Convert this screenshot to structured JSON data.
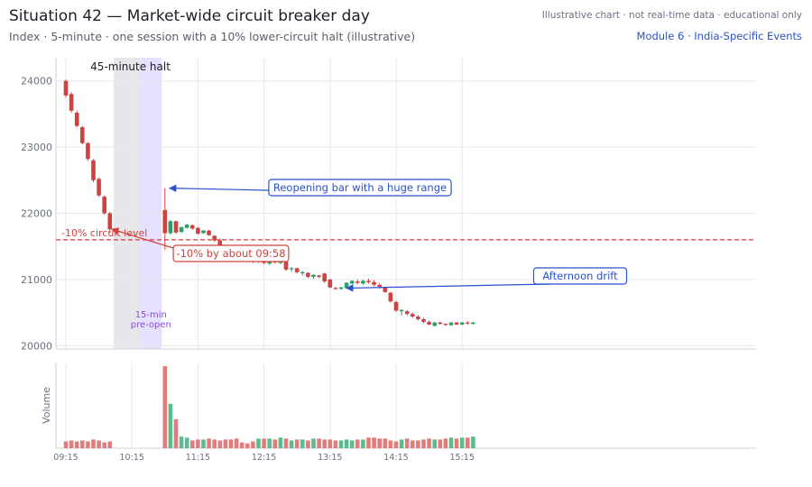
{
  "header": {
    "title": "Situation 42 — Market-wide circuit breaker day",
    "subtitle": "Index · 5-minute · one session with a 10% lower-circuit halt (illustrative)",
    "disclaimer": "Illustrative chart · not real-time data · educational only",
    "module": "Module 6 · India-Specific Events"
  },
  "colors": {
    "up": "#2e9e6b",
    "down": "#d0413f",
    "vol_up": "#5cbb8f",
    "vol_down": "#e27c7a",
    "halt_band": "#e6e7eb",
    "preopen_band": "#e5e1ff",
    "annotation_blue": "#2a52c9",
    "circuit_red": "#d0413f",
    "preopen_text": "#8a4fd8"
  },
  "chart_data": {
    "type": "candlestick",
    "ylabel_volume": "Volume",
    "price_yticks": [
      20000,
      21000,
      22000,
      23000,
      24000
    ],
    "price_ylim": [
      19950,
      24350
    ],
    "x_ticks": [
      "09:15",
      "10:15",
      "11:15",
      "12:15",
      "13:15",
      "14:15",
      "15:15"
    ],
    "circuit_level": 21600,
    "halt_label": "45-minute halt",
    "preopen_label": [
      "15-min",
      "pre-open"
    ],
    "annotations": {
      "circuit": "-10% circuit level",
      "by_time": "-10% by about 09:58",
      "reopen": "Reopening bar with a huge range",
      "drift": "Afternoon drift"
    },
    "pre_halt_bars": [
      {
        "t": "09:15",
        "o": 24000,
        "h": 24020,
        "l": 23750,
        "c": 23780,
        "v": 7
      },
      {
        "t": "09:20",
        "o": 23800,
        "h": 23830,
        "l": 23520,
        "c": 23550,
        "v": 8
      },
      {
        "t": "09:25",
        "o": 23520,
        "h": 23550,
        "l": 23300,
        "c": 23320,
        "v": 7
      },
      {
        "t": "09:30",
        "o": 23300,
        "h": 23320,
        "l": 23040,
        "c": 23060,
        "v": 8
      },
      {
        "t": "09:35",
        "o": 23060,
        "h": 23080,
        "l": 22790,
        "c": 22820,
        "v": 7
      },
      {
        "t": "09:40",
        "o": 22800,
        "h": 22820,
        "l": 22470,
        "c": 22500,
        "v": 9
      },
      {
        "t": "09:45",
        "o": 22520,
        "h": 22540,
        "l": 22250,
        "c": 22270,
        "v": 8
      },
      {
        "t": "09:50",
        "o": 22250,
        "h": 22270,
        "l": 21980,
        "c": 22000,
        "v": 6
      },
      {
        "t": "09:55",
        "o": 22000,
        "h": 22020,
        "l": 21700,
        "c": 21760,
        "v": 7
      }
    ],
    "post_halt_bars": [
      {
        "t": "10:45",
        "o": 22050,
        "h": 22380,
        "l": 21450,
        "c": 21700,
        "v": 85
      },
      {
        "t": "10:50",
        "o": 21700,
        "h": 21900,
        "l": 21680,
        "c": 21880,
        "v": 46
      },
      {
        "t": "10:55",
        "o": 21880,
        "h": 21890,
        "l": 21690,
        "c": 21710,
        "v": 30
      },
      {
        "t": "11:00",
        "o": 21720,
        "h": 21800,
        "l": 21700,
        "c": 21790,
        "v": 12
      },
      {
        "t": "11:05",
        "o": 21780,
        "h": 21840,
        "l": 21770,
        "c": 21830,
        "v": 11
      },
      {
        "t": "11:10",
        "o": 21820,
        "h": 21830,
        "l": 21750,
        "c": 21770,
        "v": 8
      },
      {
        "t": "11:15",
        "o": 21780,
        "h": 21790,
        "l": 21680,
        "c": 21690,
        "v": 9
      },
      {
        "t": "11:20",
        "o": 21700,
        "h": 21750,
        "l": 21690,
        "c": 21740,
        "v": 9
      },
      {
        "t": "11:25",
        "o": 21740,
        "h": 21750,
        "l": 21660,
        "c": 21670,
        "v": 10
      },
      {
        "t": "11:30",
        "o": 21660,
        "h": 21670,
        "l": 21570,
        "c": 21590,
        "v": 9
      },
      {
        "t": "11:35",
        "o": 21590,
        "h": 21620,
        "l": 21420,
        "c": 21450,
        "v": 8
      },
      {
        "t": "11:40",
        "o": 21460,
        "h": 21470,
        "l": 21340,
        "c": 21360,
        "v": 9
      },
      {
        "t": "11:45",
        "o": 21360,
        "h": 21380,
        "l": 21320,
        "c": 21340,
        "v": 9
      },
      {
        "t": "11:50",
        "o": 21340,
        "h": 21350,
        "l": 21290,
        "c": 21310,
        "v": 10
      },
      {
        "t": "11:55",
        "o": 21310,
        "h": 21330,
        "l": 21280,
        "c": 21290,
        "v": 6
      },
      {
        "t": "12:00",
        "o": 21290,
        "h": 21310,
        "l": 21270,
        "c": 21280,
        "v": 5
      },
      {
        "t": "12:05",
        "o": 21280,
        "h": 21300,
        "l": 21250,
        "c": 21270,
        "v": 7
      },
      {
        "t": "12:10",
        "o": 21270,
        "h": 21350,
        "l": 21250,
        "c": 21320,
        "v": 10
      },
      {
        "t": "12:15",
        "o": 21320,
        "h": 21340,
        "l": 21230,
        "c": 21250,
        "v": 10
      },
      {
        "t": "12:20",
        "o": 21240,
        "h": 21300,
        "l": 21220,
        "c": 21280,
        "v": 10
      },
      {
        "t": "12:25",
        "o": 21280,
        "h": 21300,
        "l": 21240,
        "c": 21260,
        "v": 9
      },
      {
        "t": "12:30",
        "o": 21250,
        "h": 21290,
        "l": 21230,
        "c": 21270,
        "v": 11
      },
      {
        "t": "12:35",
        "o": 21270,
        "h": 21300,
        "l": 21130,
        "c": 21150,
        "v": 10
      },
      {
        "t": "12:40",
        "o": 21160,
        "h": 21190,
        "l": 21120,
        "c": 21170,
        "v": 8
      },
      {
        "t": "12:45",
        "o": 21170,
        "h": 21180,
        "l": 21090,
        "c": 21110,
        "v": 9
      },
      {
        "t": "12:50",
        "o": 21100,
        "h": 21130,
        "l": 21060,
        "c": 21110,
        "v": 9
      },
      {
        "t": "12:55",
        "o": 21100,
        "h": 21110,
        "l": 21020,
        "c": 21040,
        "v": 8
      },
      {
        "t": "13:00",
        "o": 21040,
        "h": 21080,
        "l": 21010,
        "c": 21070,
        "v": 10
      },
      {
        "t": "13:05",
        "o": 21060,
        "h": 21070,
        "l": 21020,
        "c": 21040,
        "v": 10
      },
      {
        "t": "13:10",
        "o": 21090,
        "h": 21100,
        "l": 20950,
        "c": 20970,
        "v": 9
      },
      {
        "t": "13:15",
        "o": 21000,
        "h": 21010,
        "l": 20870,
        "c": 20880,
        "v": 9
      },
      {
        "t": "13:20",
        "o": 20870,
        "h": 20890,
        "l": 20850,
        "c": 20860,
        "v": 8
      },
      {
        "t": "13:25",
        "o": 20860,
        "h": 20890,
        "l": 20840,
        "c": 20880,
        "v": 8
      },
      {
        "t": "13:30",
        "o": 20870,
        "h": 20960,
        "l": 20860,
        "c": 20950,
        "v": 9
      },
      {
        "t": "13:35",
        "o": 20940,
        "h": 20990,
        "l": 20930,
        "c": 20980,
        "v": 8
      },
      {
        "t": "13:40",
        "o": 20970,
        "h": 21000,
        "l": 20930,
        "c": 20950,
        "v": 9
      },
      {
        "t": "13:45",
        "o": 20940,
        "h": 21000,
        "l": 20920,
        "c": 20980,
        "v": 9
      },
      {
        "t": "13:50",
        "o": 20980,
        "h": 21010,
        "l": 20940,
        "c": 20960,
        "v": 11
      },
      {
        "t": "13:55",
        "o": 20960,
        "h": 20990,
        "l": 20900,
        "c": 20920,
        "v": 11
      },
      {
        "t": "14:00",
        "o": 20920,
        "h": 20940,
        "l": 20860,
        "c": 20890,
        "v": 10
      },
      {
        "t": "14:05",
        "o": 20880,
        "h": 20890,
        "l": 20800,
        "c": 20810,
        "v": 10
      },
      {
        "t": "14:10",
        "o": 20800,
        "h": 20810,
        "l": 20650,
        "c": 20670,
        "v": 8
      },
      {
        "t": "14:15",
        "o": 20660,
        "h": 20680,
        "l": 20510,
        "c": 20530,
        "v": 7
      },
      {
        "t": "14:20",
        "o": 20520,
        "h": 20550,
        "l": 20460,
        "c": 20540,
        "v": 9
      },
      {
        "t": "14:25",
        "o": 20520,
        "h": 20540,
        "l": 20460,
        "c": 20480,
        "v": 10
      },
      {
        "t": "14:30",
        "o": 20480,
        "h": 20500,
        "l": 20420,
        "c": 20440,
        "v": 8
      },
      {
        "t": "14:35",
        "o": 20440,
        "h": 20460,
        "l": 20380,
        "c": 20400,
        "v": 8
      },
      {
        "t": "14:40",
        "o": 20400,
        "h": 20420,
        "l": 20340,
        "c": 20360,
        "v": 9
      },
      {
        "t": "14:45",
        "o": 20360,
        "h": 20380,
        "l": 20310,
        "c": 20320,
        "v": 10
      },
      {
        "t": "14:50",
        "o": 20300,
        "h": 20360,
        "l": 20290,
        "c": 20350,
        "v": 9
      },
      {
        "t": "14:55",
        "o": 20350,
        "h": 20360,
        "l": 20320,
        "c": 20330,
        "v": 9
      },
      {
        "t": "15:00",
        "o": 20330,
        "h": 20340,
        "l": 20300,
        "c": 20320,
        "v": 10
      },
      {
        "t": "15:05",
        "o": 20310,
        "h": 20360,
        "l": 20300,
        "c": 20350,
        "v": 11
      },
      {
        "t": "15:10",
        "o": 20350,
        "h": 20360,
        "l": 20310,
        "c": 20320,
        "v": 10
      },
      {
        "t": "15:15",
        "o": 20320,
        "h": 20360,
        "l": 20310,
        "c": 20350,
        "v": 11
      },
      {
        "t": "15:20",
        "o": 20350,
        "h": 20370,
        "l": 20320,
        "c": 20340,
        "v": 11
      },
      {
        "t": "15:25",
        "o": 20330,
        "h": 20360,
        "l": 20320,
        "c": 20350,
        "v": 12
      }
    ]
  }
}
